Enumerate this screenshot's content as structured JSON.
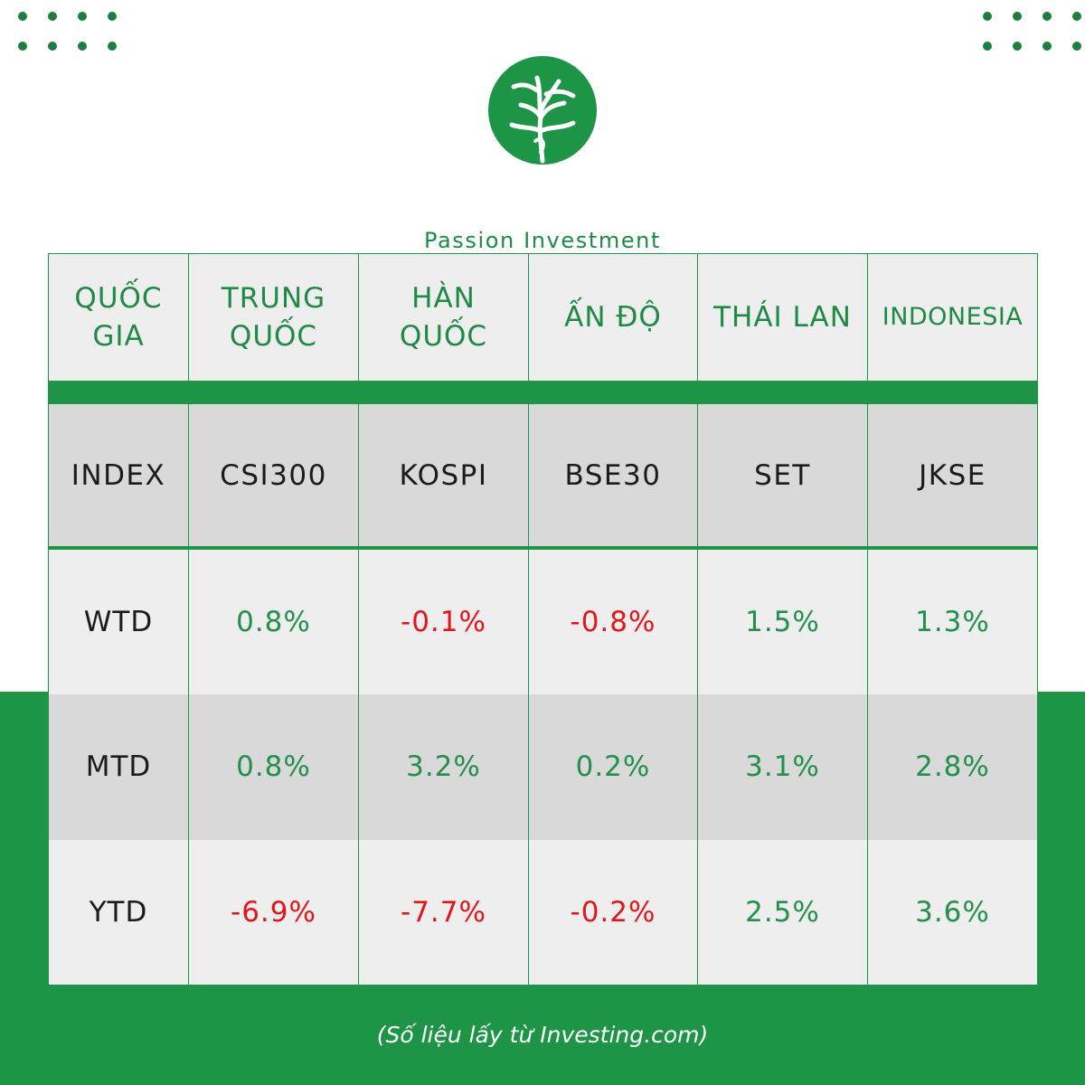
{
  "brand": {
    "name": "Passion Investment",
    "color": "#1e8a45"
  },
  "colors": {
    "green": "#1e9447",
    "positive": "#22904a",
    "negative": "#e3151b"
  },
  "table": {
    "header": {
      "label": [
        "QUỐC",
        "GIA"
      ],
      "countries": [
        {
          "lines": [
            "TRUNG",
            "QUỐC"
          ]
        },
        {
          "lines": [
            "HÀN",
            "QUỐC"
          ]
        },
        {
          "lines": [
            "ẤN ĐỘ"
          ]
        },
        {
          "lines": [
            "THÁI LAN"
          ]
        },
        {
          "lines": [
            "INDONESIA"
          ]
        }
      ]
    },
    "index": {
      "label": "INDEX",
      "values": [
        "CSI300",
        "KOSPI",
        "BSE30",
        "SET",
        "JKSE"
      ]
    },
    "rows": [
      {
        "label": "WTD",
        "values": [
          "0.8%",
          "-0.1%",
          "-0.8%",
          "1.5%",
          "1.3%"
        ]
      },
      {
        "label": "MTD",
        "values": [
          "0.8%",
          "3.2%",
          "0.2%",
          "3.1%",
          "2.8%"
        ]
      },
      {
        "label": "YTD",
        "values": [
          "-6.9%",
          "-7.7%",
          "-0.2%",
          "2.5%",
          "3.6%"
        ]
      }
    ]
  },
  "footnote": "(Số liệu lấy từ Investing.com)"
}
